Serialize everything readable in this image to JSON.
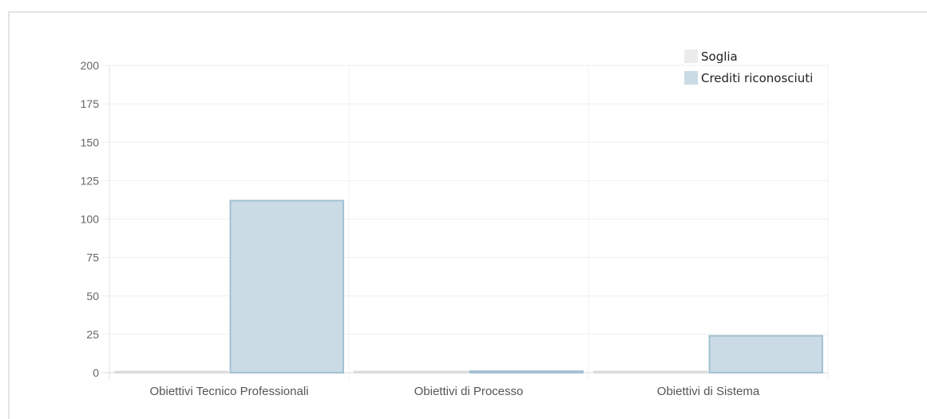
{
  "chart_data": {
    "type": "bar",
    "title": "",
    "xlabel": "",
    "ylabel": "",
    "categories": [
      "Obiettivi Tecnico Professionali",
      "Obiettivi di Processo",
      "Obiettivi di Sistema"
    ],
    "series": [
      {
        "name": "Soglia",
        "values": [
          0,
          0,
          0
        ],
        "fill": "#ececec",
        "stroke": "#dcdcdc"
      },
      {
        "name": "Crediti riconosciuti",
        "values": [
          112,
          1,
          24
        ],
        "fill": "#cadbe5",
        "stroke": "#a3c1d3"
      }
    ],
    "ylim": [
      0,
      200
    ],
    "yticks": [
      0,
      25,
      50,
      75,
      100,
      125,
      150,
      175,
      200
    ],
    "grid": true,
    "legend_position": "top-right"
  }
}
